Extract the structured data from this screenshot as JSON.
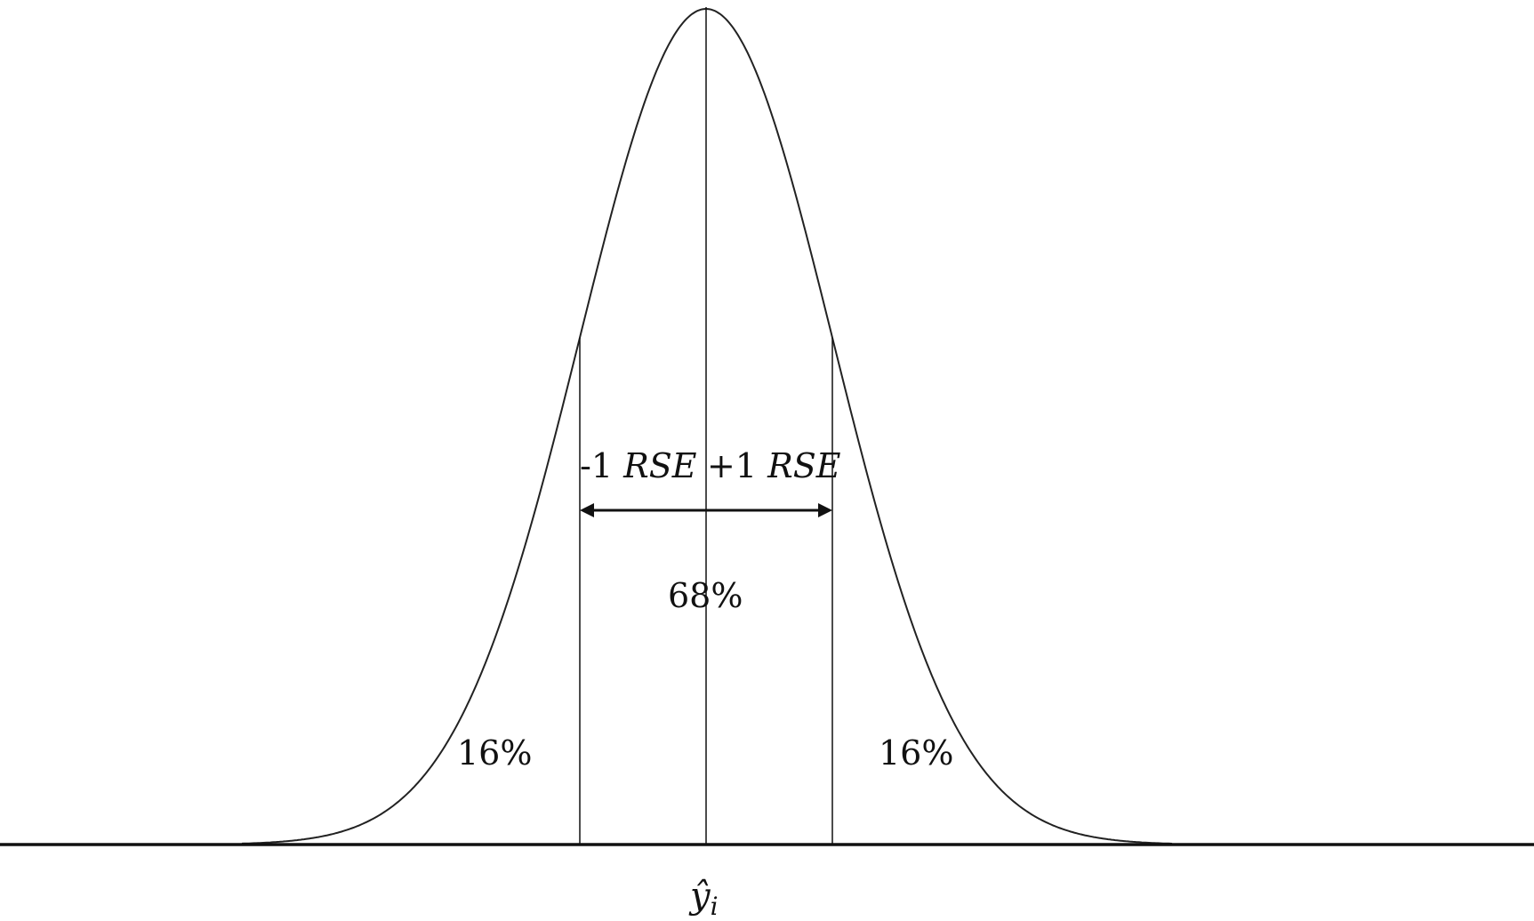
{
  "diagram": {
    "center_label": "ŷ",
    "center_label_subscript": "i",
    "minus_label": {
      "prefix": "-1 ",
      "unit": "RSE"
    },
    "plus_label": {
      "prefix": "+1 ",
      "unit": "RSE"
    },
    "center_percent": "68%",
    "left_tail_percent": "16%",
    "right_tail_percent": "16%",
    "line_color": "#111111",
    "background": "#ffffff"
  }
}
